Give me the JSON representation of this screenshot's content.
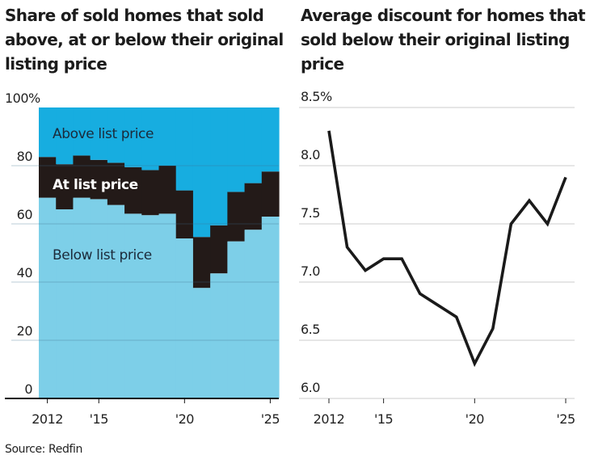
{
  "chart_data": [
    {
      "type": "area",
      "title": "Share of sold homes that sold above, at or below their original listing price",
      "xlabel": "",
      "ylabel": "",
      "x": [
        2012,
        2013,
        2014,
        2015,
        2016,
        2017,
        2018,
        2019,
        2020,
        2021,
        2022,
        2023,
        2024,
        2025
      ],
      "x_tick_labels": [
        {
          "year": 2012,
          "label": "2012"
        },
        {
          "year": 2015,
          "label": "'15"
        },
        {
          "year": 2020,
          "label": "'20"
        },
        {
          "year": 2025,
          "label": "'25"
        }
      ],
      "y_ticks": [
        {
          "value": 0,
          "label": "0"
        },
        {
          "value": 20,
          "label": "20"
        },
        {
          "value": 40,
          "label": "40"
        },
        {
          "value": 60,
          "label": "60"
        },
        {
          "value": 80,
          "label": "80"
        },
        {
          "value": 100,
          "label": "100%"
        }
      ],
      "ylim": [
        0,
        100
      ],
      "stacked": true,
      "step": true,
      "series": [
        {
          "name": "Below list price",
          "color": "#7dcfe8",
          "values": [
            69,
            65,
            69,
            68.5,
            66.5,
            63.5,
            63,
            63.5,
            55,
            38,
            43,
            54,
            58,
            62.5
          ]
        },
        {
          "name": "At list price",
          "color": "#231a18",
          "values": [
            14,
            15.5,
            14.5,
            13.5,
            14.5,
            16,
            15.5,
            16.5,
            16.5,
            17.5,
            16.5,
            17,
            16,
            15.5
          ]
        },
        {
          "name": "Above list price",
          "color": "#17ade0",
          "values": [
            17,
            19.5,
            16.5,
            18,
            19,
            20.5,
            21.5,
            20,
            28.5,
            44.5,
            40.5,
            29,
            26,
            22
          ]
        }
      ],
      "annotations": [
        {
          "text": "Above list price",
          "series": "Above list price"
        },
        {
          "text": "At list price",
          "series": "At list price"
        },
        {
          "text": "Below list price",
          "series": "Below list price"
        }
      ],
      "grid": true
    },
    {
      "type": "line",
      "title": "Average discount for homes that sold below their original listing price",
      "xlabel": "",
      "ylabel": "",
      "x": [
        2012,
        2013,
        2014,
        2015,
        2016,
        2017,
        2018,
        2019,
        2020,
        2021,
        2022,
        2023,
        2024,
        2025
      ],
      "x_tick_labels": [
        {
          "year": 2012,
          "label": "2012"
        },
        {
          "year": 2015,
          "label": "'15"
        },
        {
          "year": 2020,
          "label": "'20"
        },
        {
          "year": 2025,
          "label": "'25"
        }
      ],
      "y_ticks": [
        {
          "value": 6.0,
          "label": "6.0"
        },
        {
          "value": 6.5,
          "label": "6.5"
        },
        {
          "value": 7.0,
          "label": "7.0"
        },
        {
          "value": 7.5,
          "label": "7.5"
        },
        {
          "value": 8.0,
          "label": "8.0"
        },
        {
          "value": 8.5,
          "label": "8.5%"
        }
      ],
      "ylim": [
        6.0,
        8.5
      ],
      "series": [
        {
          "name": "Average discount",
          "color": "#1a1a1a",
          "values": [
            8.3,
            7.3,
            7.1,
            7.2,
            7.2,
            6.9,
            6.8,
            6.7,
            6.3,
            6.6,
            7.5,
            7.7,
            7.5,
            7.9
          ]
        }
      ],
      "grid": true
    }
  ],
  "source": "Source: Redfin"
}
